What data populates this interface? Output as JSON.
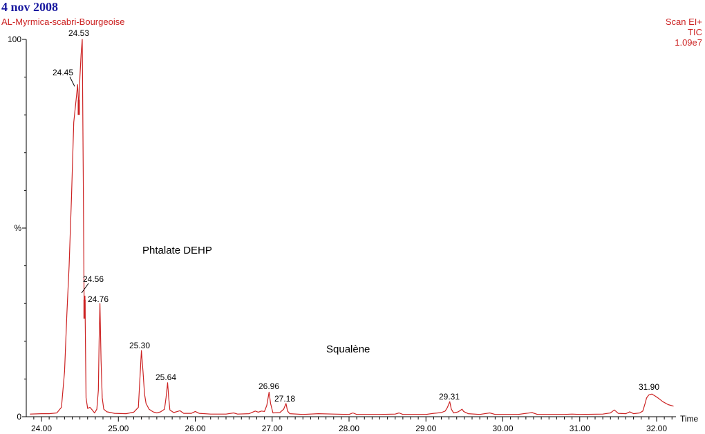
{
  "header": {
    "date": "4 nov 2008",
    "sample": "AL-Myrmica-scabri-Bourgeoise",
    "scan_mode": "Scan EI+",
    "trace": "TIC",
    "intensity": "1.09e7"
  },
  "colors": {
    "trace": "#cc2222",
    "axis": "#000000",
    "date": "#1a1aa0"
  },
  "chart_data": {
    "type": "line",
    "title": "",
    "xlabel": "Time",
    "ylabel": "%",
    "xlim": [
      23.85,
      32.25
    ],
    "ylim": [
      0,
      100
    ],
    "x_ticks": [
      "24.00",
      "25.00",
      "26.00",
      "27.00",
      "28.00",
      "29.00",
      "30.00",
      "31.00",
      "32.00"
    ],
    "y_ticks": [
      "0",
      "%",
      "100"
    ],
    "annotations": [
      {
        "text": "Phtalate DEHP"
      },
      {
        "text": "Squalène"
      }
    ],
    "peak_labels": [
      "24.45",
      "24.53",
      "24.56",
      "24.76",
      "25.30",
      "25.64",
      "26.96",
      "27.18",
      "29.31",
      "31.90"
    ],
    "series": [
      {
        "points": [
          [
            23.85,
            0.7
          ],
          [
            24.0,
            0.8
          ],
          [
            24.1,
            0.8
          ],
          [
            24.2,
            1.0
          ],
          [
            24.26,
            2.5
          ],
          [
            24.3,
            12
          ],
          [
            24.33,
            27
          ],
          [
            24.36,
            40
          ],
          [
            24.39,
            58
          ],
          [
            24.42,
            78
          ],
          [
            24.45,
            84
          ],
          [
            24.47,
            88
          ],
          [
            24.485,
            82
          ],
          [
            24.5,
            90
          ],
          [
            24.515,
            96
          ],
          [
            24.53,
            100
          ],
          [
            24.545,
            60
          ],
          [
            24.555,
            30
          ],
          [
            24.56,
            27
          ],
          [
            24.565,
            32
          ],
          [
            24.58,
            5
          ],
          [
            24.6,
            2.2
          ],
          [
            24.63,
            2.5
          ],
          [
            24.66,
            1.8
          ],
          [
            24.69,
            1.0
          ],
          [
            24.72,
            2.0
          ],
          [
            24.74,
            7
          ],
          [
            24.75,
            20
          ],
          [
            24.76,
            30
          ],
          [
            24.775,
            15
          ],
          [
            24.79,
            5
          ],
          [
            24.81,
            2.0
          ],
          [
            24.85,
            1.3
          ],
          [
            24.95,
            0.9
          ],
          [
            25.1,
            0.8
          ],
          [
            25.2,
            1.2
          ],
          [
            25.26,
            2.5
          ],
          [
            25.28,
            10
          ],
          [
            25.3,
            17.5
          ],
          [
            25.32,
            12
          ],
          [
            25.34,
            6
          ],
          [
            25.36,
            3.5
          ],
          [
            25.4,
            2.0
          ],
          [
            25.45,
            1.3
          ],
          [
            25.5,
            1.0
          ],
          [
            25.55,
            1.3
          ],
          [
            25.6,
            2.0
          ],
          [
            25.62,
            5
          ],
          [
            25.64,
            9
          ],
          [
            25.655,
            5
          ],
          [
            25.67,
            1.8
          ],
          [
            25.72,
            1.1
          ],
          [
            25.8,
            1.6
          ],
          [
            25.85,
            0.9
          ],
          [
            25.95,
            0.9
          ],
          [
            26.0,
            1.4
          ],
          [
            26.05,
            0.9
          ],
          [
            26.2,
            0.7
          ],
          [
            26.4,
            0.7
          ],
          [
            26.5,
            1.0
          ],
          [
            26.55,
            0.7
          ],
          [
            26.7,
            0.8
          ],
          [
            26.78,
            1.5
          ],
          [
            26.82,
            1.2
          ],
          [
            26.86,
            1.5
          ],
          [
            26.9,
            1.4
          ],
          [
            26.93,
            3.0
          ],
          [
            26.96,
            6.5
          ],
          [
            26.98,
            3.5
          ],
          [
            27.01,
            1.0
          ],
          [
            27.1,
            1.1
          ],
          [
            27.15,
            2.0
          ],
          [
            27.18,
            3.5
          ],
          [
            27.2,
            1.5
          ],
          [
            27.23,
            0.8
          ],
          [
            27.4,
            0.6
          ],
          [
            27.6,
            0.8
          ],
          [
            27.8,
            0.7
          ],
          [
            28.0,
            0.6
          ],
          [
            28.05,
            1.0
          ],
          [
            28.1,
            0.6
          ],
          [
            28.4,
            0.6
          ],
          [
            28.6,
            0.7
          ],
          [
            28.65,
            1.0
          ],
          [
            28.7,
            0.6
          ],
          [
            29.0,
            0.6
          ],
          [
            29.1,
            0.9
          ],
          [
            29.2,
            1.1
          ],
          [
            29.25,
            1.5
          ],
          [
            29.28,
            2.5
          ],
          [
            29.31,
            4.0
          ],
          [
            29.33,
            2.0
          ],
          [
            29.36,
            1.0
          ],
          [
            29.42,
            1.3
          ],
          [
            29.47,
            2.0
          ],
          [
            29.49,
            1.4
          ],
          [
            29.55,
            0.8
          ],
          [
            29.7,
            0.6
          ],
          [
            29.83,
            1.0
          ],
          [
            29.9,
            0.6
          ],
          [
            30.2,
            0.6
          ],
          [
            30.38,
            1.1
          ],
          [
            30.45,
            0.6
          ],
          [
            30.8,
            0.6
          ],
          [
            30.9,
            0.7
          ],
          [
            31.0,
            0.6
          ],
          [
            31.3,
            0.7
          ],
          [
            31.4,
            1.0
          ],
          [
            31.45,
            1.8
          ],
          [
            31.5,
            0.9
          ],
          [
            31.6,
            0.8
          ],
          [
            31.65,
            1.3
          ],
          [
            31.7,
            0.8
          ],
          [
            31.78,
            1.0
          ],
          [
            31.82,
            1.5
          ],
          [
            31.85,
            3.5
          ],
          [
            31.87,
            5.0
          ],
          [
            31.9,
            5.8
          ],
          [
            31.94,
            6.0
          ],
          [
            31.98,
            5.5
          ],
          [
            32.03,
            4.8
          ],
          [
            32.08,
            4.0
          ],
          [
            32.15,
            3.2
          ],
          [
            32.22,
            2.8
          ]
        ]
      }
    ]
  }
}
